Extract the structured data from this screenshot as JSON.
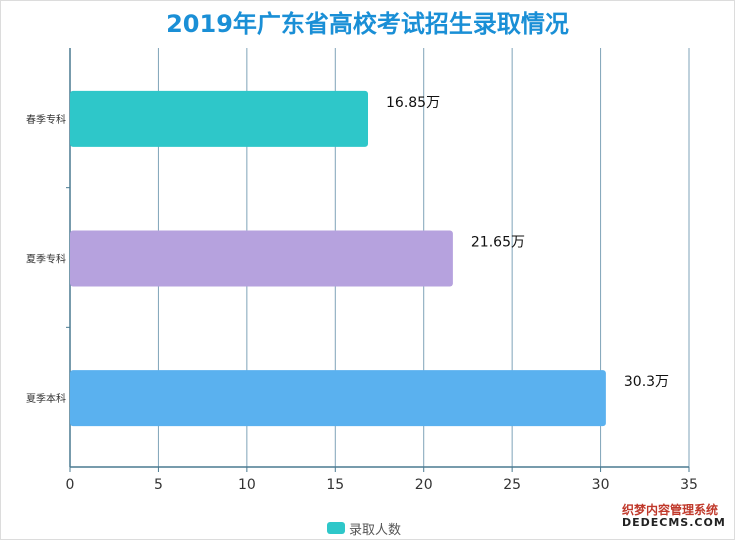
{
  "title": "2019年广东省高校考试招生录取情况",
  "chart_data": {
    "type": "bar",
    "orientation": "horizontal",
    "categories": [
      "春季专科",
      "夏季专科",
      "夏季本科"
    ],
    "values": [
      16.85,
      21.65,
      30.3
    ],
    "value_labels": [
      "16.85万",
      "21.65万",
      "30.3万"
    ],
    "colors": [
      "#2ec7c9",
      "#b6a2de",
      "#5ab1ef"
    ],
    "xlim": [
      0,
      35
    ],
    "xticks": [
      "0",
      "5",
      "10",
      "15",
      "20",
      "25",
      "30",
      "35"
    ],
    "grid": true,
    "legend": {
      "position": "bottom-center",
      "entries": [
        "录取人数"
      ]
    }
  },
  "legend_color": "#2ec7c9",
  "watermark": {
    "top": "织梦内容管理系统",
    "bottom": "DEDECMS.COM"
  }
}
